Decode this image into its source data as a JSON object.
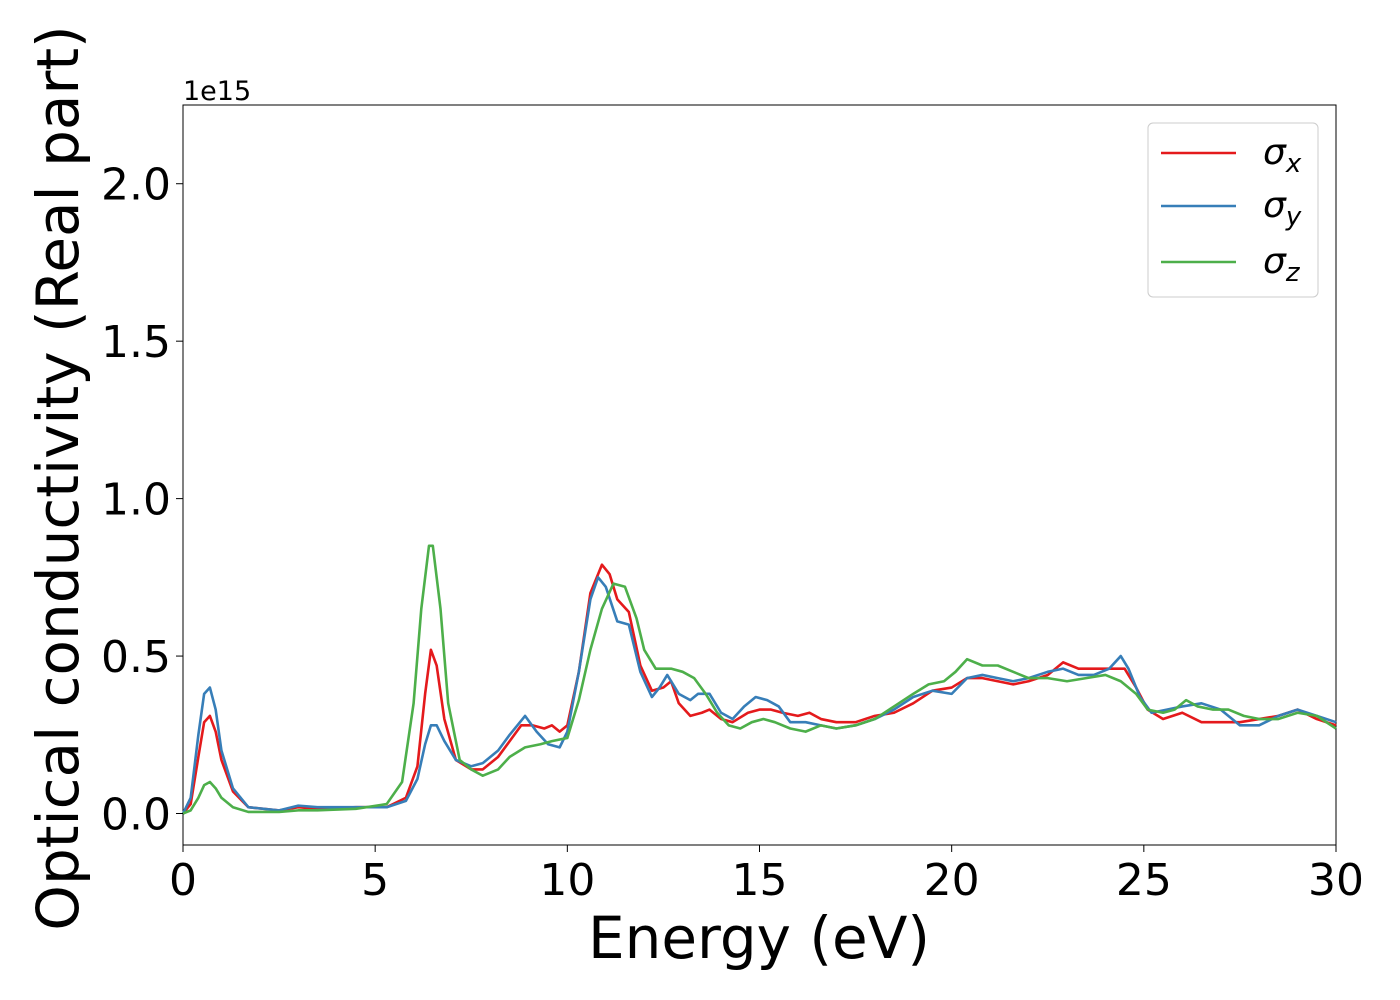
{
  "chart_data": {
    "type": "line",
    "xlabel": "Energy (eV)",
    "ylabel": "Optical conductivity (Real part)",
    "y_scale_label": "1e15",
    "xlim": [
      0,
      30
    ],
    "ylim": [
      -0.1,
      2.25
    ],
    "x_ticks": [
      0,
      5,
      10,
      15,
      20,
      25,
      30
    ],
    "y_ticks": [
      0.0,
      0.5,
      1.0,
      1.5,
      2.0
    ],
    "x_tick_labels": [
      "0",
      "5",
      "10",
      "15",
      "20",
      "25",
      "30"
    ],
    "y_tick_labels": [
      "0.0",
      "0.5",
      "1.0",
      "1.5",
      "2.0"
    ],
    "grid": false,
    "legend_position": "top-right",
    "series": [
      {
        "name": "σx",
        "name_base": "σ",
        "name_sub": "x",
        "color": "#e41a1c",
        "points": [
          [
            0,
            0.0
          ],
          [
            0.2,
            0.03
          ],
          [
            0.4,
            0.18
          ],
          [
            0.55,
            0.29
          ],
          [
            0.7,
            0.31
          ],
          [
            0.85,
            0.26
          ],
          [
            1.0,
            0.17
          ],
          [
            1.3,
            0.07
          ],
          [
            1.7,
            0.02
          ],
          [
            2.5,
            0.01
          ],
          [
            3.0,
            0.02
          ],
          [
            3.5,
            0.015
          ],
          [
            4.5,
            0.02
          ],
          [
            5.3,
            0.02
          ],
          [
            5.8,
            0.05
          ],
          [
            6.1,
            0.15
          ],
          [
            6.3,
            0.38
          ],
          [
            6.45,
            0.52
          ],
          [
            6.6,
            0.47
          ],
          [
            6.8,
            0.3
          ],
          [
            7.1,
            0.17
          ],
          [
            7.5,
            0.14
          ],
          [
            7.8,
            0.14
          ],
          [
            8.2,
            0.18
          ],
          [
            8.5,
            0.23
          ],
          [
            8.8,
            0.28
          ],
          [
            9.1,
            0.28
          ],
          [
            9.4,
            0.27
          ],
          [
            9.6,
            0.28
          ],
          [
            9.8,
            0.26
          ],
          [
            10.0,
            0.28
          ],
          [
            10.3,
            0.45
          ],
          [
            10.6,
            0.7
          ],
          [
            10.9,
            0.79
          ],
          [
            11.1,
            0.76
          ],
          [
            11.3,
            0.68
          ],
          [
            11.6,
            0.64
          ],
          [
            11.9,
            0.47
          ],
          [
            12.2,
            0.39
          ],
          [
            12.5,
            0.4
          ],
          [
            12.7,
            0.42
          ],
          [
            12.9,
            0.35
          ],
          [
            13.2,
            0.31
          ],
          [
            13.5,
            0.32
          ],
          [
            13.7,
            0.33
          ],
          [
            14.0,
            0.3
          ],
          [
            14.3,
            0.29
          ],
          [
            14.7,
            0.32
          ],
          [
            15.0,
            0.33
          ],
          [
            15.3,
            0.33
          ],
          [
            15.6,
            0.32
          ],
          [
            16.0,
            0.31
          ],
          [
            16.3,
            0.32
          ],
          [
            16.6,
            0.3
          ],
          [
            17.0,
            0.29
          ],
          [
            17.5,
            0.29
          ],
          [
            18.0,
            0.31
          ],
          [
            18.5,
            0.32
          ],
          [
            19.0,
            0.35
          ],
          [
            19.5,
            0.39
          ],
          [
            20.0,
            0.4
          ],
          [
            20.4,
            0.43
          ],
          [
            20.8,
            0.43
          ],
          [
            21.2,
            0.42
          ],
          [
            21.6,
            0.41
          ],
          [
            22.0,
            0.42
          ],
          [
            22.5,
            0.44
          ],
          [
            22.9,
            0.48
          ],
          [
            23.3,
            0.46
          ],
          [
            23.7,
            0.46
          ],
          [
            24.1,
            0.46
          ],
          [
            24.5,
            0.46
          ],
          [
            24.8,
            0.4
          ],
          [
            25.1,
            0.33
          ],
          [
            25.5,
            0.3
          ],
          [
            26.0,
            0.32
          ],
          [
            26.5,
            0.29
          ],
          [
            27.0,
            0.29
          ],
          [
            27.5,
            0.29
          ],
          [
            28.0,
            0.3
          ],
          [
            28.5,
            0.31
          ],
          [
            29.0,
            0.33
          ],
          [
            29.5,
            0.3
          ],
          [
            30.0,
            0.28
          ]
        ]
      },
      {
        "name": "σy",
        "name_base": "σ",
        "name_sub": "y",
        "color": "#377eb8",
        "points": [
          [
            0,
            0.0
          ],
          [
            0.2,
            0.05
          ],
          [
            0.4,
            0.25
          ],
          [
            0.55,
            0.38
          ],
          [
            0.7,
            0.4
          ],
          [
            0.85,
            0.33
          ],
          [
            1.0,
            0.2
          ],
          [
            1.3,
            0.08
          ],
          [
            1.7,
            0.02
          ],
          [
            2.5,
            0.01
          ],
          [
            3.0,
            0.025
          ],
          [
            3.5,
            0.02
          ],
          [
            4.5,
            0.02
          ],
          [
            5.3,
            0.02
          ],
          [
            5.8,
            0.04
          ],
          [
            6.1,
            0.11
          ],
          [
            6.3,
            0.22
          ],
          [
            6.45,
            0.28
          ],
          [
            6.6,
            0.28
          ],
          [
            6.8,
            0.23
          ],
          [
            7.1,
            0.17
          ],
          [
            7.5,
            0.15
          ],
          [
            7.8,
            0.16
          ],
          [
            8.2,
            0.2
          ],
          [
            8.5,
            0.25
          ],
          [
            8.9,
            0.31
          ],
          [
            9.2,
            0.26
          ],
          [
            9.5,
            0.22
          ],
          [
            9.8,
            0.21
          ],
          [
            10.0,
            0.26
          ],
          [
            10.3,
            0.45
          ],
          [
            10.6,
            0.68
          ],
          [
            10.8,
            0.75
          ],
          [
            11.0,
            0.72
          ],
          [
            11.3,
            0.61
          ],
          [
            11.6,
            0.6
          ],
          [
            11.9,
            0.45
          ],
          [
            12.2,
            0.37
          ],
          [
            12.4,
            0.4
          ],
          [
            12.6,
            0.44
          ],
          [
            12.9,
            0.38
          ],
          [
            13.2,
            0.36
          ],
          [
            13.4,
            0.38
          ],
          [
            13.7,
            0.38
          ],
          [
            14.0,
            0.32
          ],
          [
            14.3,
            0.3
          ],
          [
            14.6,
            0.34
          ],
          [
            14.9,
            0.37
          ],
          [
            15.2,
            0.36
          ],
          [
            15.5,
            0.34
          ],
          [
            15.8,
            0.29
          ],
          [
            16.2,
            0.29
          ],
          [
            16.6,
            0.28
          ],
          [
            17.0,
            0.27
          ],
          [
            17.5,
            0.28
          ],
          [
            18.0,
            0.3
          ],
          [
            18.5,
            0.33
          ],
          [
            19.0,
            0.37
          ],
          [
            19.5,
            0.39
          ],
          [
            20.0,
            0.38
          ],
          [
            20.4,
            0.43
          ],
          [
            20.8,
            0.44
          ],
          [
            21.2,
            0.43
          ],
          [
            21.6,
            0.42
          ],
          [
            22.0,
            0.43
          ],
          [
            22.5,
            0.45
          ],
          [
            22.9,
            0.46
          ],
          [
            23.3,
            0.44
          ],
          [
            23.7,
            0.44
          ],
          [
            24.1,
            0.46
          ],
          [
            24.4,
            0.5
          ],
          [
            24.6,
            0.46
          ],
          [
            24.9,
            0.37
          ],
          [
            25.2,
            0.32
          ],
          [
            25.6,
            0.33
          ],
          [
            26.0,
            0.34
          ],
          [
            26.5,
            0.35
          ],
          [
            27.0,
            0.33
          ],
          [
            27.5,
            0.28
          ],
          [
            28.0,
            0.28
          ],
          [
            28.5,
            0.31
          ],
          [
            29.0,
            0.33
          ],
          [
            29.5,
            0.31
          ],
          [
            30.0,
            0.29
          ]
        ]
      },
      {
        "name": "σz",
        "name_base": "σ",
        "name_sub": "z",
        "color": "#4daf4a",
        "points": [
          [
            0,
            0.0
          ],
          [
            0.2,
            0.01
          ],
          [
            0.4,
            0.05
          ],
          [
            0.55,
            0.09
          ],
          [
            0.7,
            0.1
          ],
          [
            0.85,
            0.08
          ],
          [
            1.0,
            0.05
          ],
          [
            1.3,
            0.02
          ],
          [
            1.7,
            0.005
          ],
          [
            2.5,
            0.005
          ],
          [
            3.0,
            0.01
          ],
          [
            3.5,
            0.01
          ],
          [
            4.5,
            0.015
          ],
          [
            5.3,
            0.03
          ],
          [
            5.7,
            0.1
          ],
          [
            6.0,
            0.35
          ],
          [
            6.2,
            0.65
          ],
          [
            6.4,
            0.85
          ],
          [
            6.5,
            0.85
          ],
          [
            6.7,
            0.65
          ],
          [
            6.9,
            0.35
          ],
          [
            7.2,
            0.17
          ],
          [
            7.5,
            0.14
          ],
          [
            7.8,
            0.12
          ],
          [
            8.2,
            0.14
          ],
          [
            8.5,
            0.18
          ],
          [
            8.9,
            0.21
          ],
          [
            9.3,
            0.22
          ],
          [
            9.6,
            0.23
          ],
          [
            10.0,
            0.24
          ],
          [
            10.3,
            0.36
          ],
          [
            10.6,
            0.52
          ],
          [
            10.9,
            0.65
          ],
          [
            11.2,
            0.73
          ],
          [
            11.5,
            0.72
          ],
          [
            11.8,
            0.62
          ],
          [
            12.0,
            0.52
          ],
          [
            12.3,
            0.46
          ],
          [
            12.7,
            0.46
          ],
          [
            13.0,
            0.45
          ],
          [
            13.3,
            0.43
          ],
          [
            13.6,
            0.38
          ],
          [
            13.9,
            0.32
          ],
          [
            14.2,
            0.28
          ],
          [
            14.5,
            0.27
          ],
          [
            14.8,
            0.29
          ],
          [
            15.1,
            0.3
          ],
          [
            15.4,
            0.29
          ],
          [
            15.8,
            0.27
          ],
          [
            16.2,
            0.26
          ],
          [
            16.6,
            0.28
          ],
          [
            17.0,
            0.27
          ],
          [
            17.5,
            0.28
          ],
          [
            18.0,
            0.3
          ],
          [
            18.5,
            0.34
          ],
          [
            19.0,
            0.38
          ],
          [
            19.4,
            0.41
          ],
          [
            19.8,
            0.42
          ],
          [
            20.1,
            0.45
          ],
          [
            20.4,
            0.49
          ],
          [
            20.8,
            0.47
          ],
          [
            21.2,
            0.47
          ],
          [
            21.6,
            0.45
          ],
          [
            22.0,
            0.43
          ],
          [
            22.5,
            0.43
          ],
          [
            23.0,
            0.42
          ],
          [
            23.5,
            0.43
          ],
          [
            24.0,
            0.44
          ],
          [
            24.4,
            0.42
          ],
          [
            24.8,
            0.38
          ],
          [
            25.1,
            0.33
          ],
          [
            25.5,
            0.32
          ],
          [
            25.8,
            0.33
          ],
          [
            26.1,
            0.36
          ],
          [
            26.4,
            0.34
          ],
          [
            26.8,
            0.33
          ],
          [
            27.2,
            0.33
          ],
          [
            27.6,
            0.31
          ],
          [
            28.0,
            0.3
          ],
          [
            28.5,
            0.3
          ],
          [
            29.0,
            0.32
          ],
          [
            29.5,
            0.31
          ],
          [
            30.0,
            0.27
          ]
        ]
      }
    ]
  }
}
